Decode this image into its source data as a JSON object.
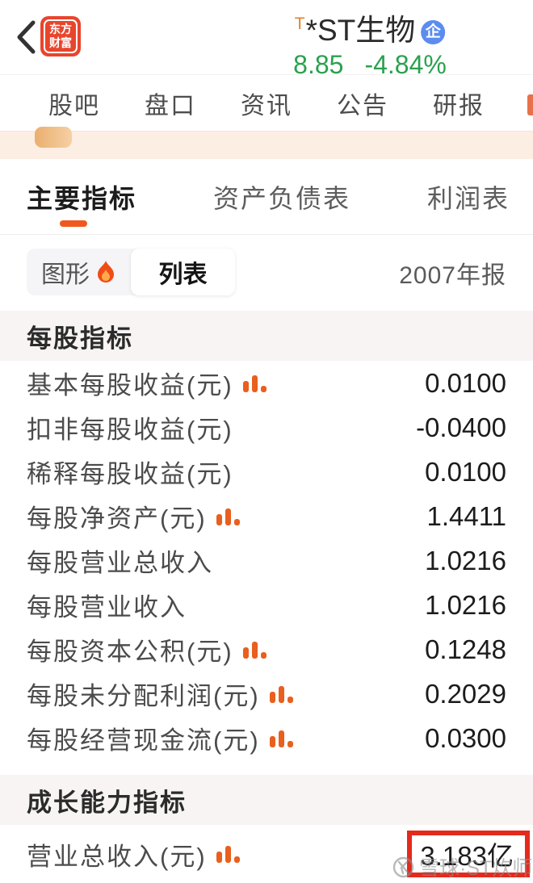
{
  "header": {
    "logo_line1": "东方",
    "logo_line2": "财富",
    "title_flag": "T",
    "stock_name": "*ST生物",
    "enterprise_badge": "企",
    "price": "8.85",
    "change": "-4.84%"
  },
  "nav": {
    "items": [
      "股吧",
      "盘口",
      "资讯",
      "公告",
      "研报"
    ]
  },
  "report_tabs": {
    "items": [
      "主要指标",
      "资产负债表",
      "利润表"
    ],
    "active_index": 0
  },
  "view_toggle": {
    "graph_label": "图形",
    "list_label": "列表",
    "period": "2007年报"
  },
  "sections": [
    {
      "title": "每股指标",
      "rows": [
        {
          "label": "基本每股收益(元)",
          "has_chart_icon": true,
          "value": "0.0100"
        },
        {
          "label": "扣非每股收益(元)",
          "has_chart_icon": false,
          "value": "-0.0400"
        },
        {
          "label": "稀释每股收益(元)",
          "has_chart_icon": false,
          "value": "0.0100"
        },
        {
          "label": "每股净资产(元)",
          "has_chart_icon": true,
          "value": "1.4411"
        },
        {
          "label": "每股营业总收入",
          "has_chart_icon": false,
          "value": "1.0216"
        },
        {
          "label": "每股营业收入",
          "has_chart_icon": false,
          "value": "1.0216"
        },
        {
          "label": "每股资本公积(元)",
          "has_chart_icon": true,
          "value": "0.1248"
        },
        {
          "label": "每股未分配利润(元)",
          "has_chart_icon": true,
          "value": "0.2029"
        },
        {
          "label": "每股经营现金流(元)",
          "has_chart_icon": true,
          "value": "0.0300"
        }
      ]
    },
    {
      "title": "成长能力指标",
      "rows": [
        {
          "label": "营业总收入(元)",
          "has_chart_icon": true,
          "value": "3.183亿",
          "highlighted": true
        }
      ]
    }
  ],
  "watermark": {
    "text": "雪球·ST炊师"
  },
  "colors": {
    "accent_orange": "#f0581d",
    "logo_red": "#e8452c",
    "price_green": "#2aa14e",
    "badge_blue": "#5b8cf0",
    "highlight_red": "#e42a1d",
    "band_gray": "#f8f4f4",
    "peach_band": "#fdeee4"
  }
}
